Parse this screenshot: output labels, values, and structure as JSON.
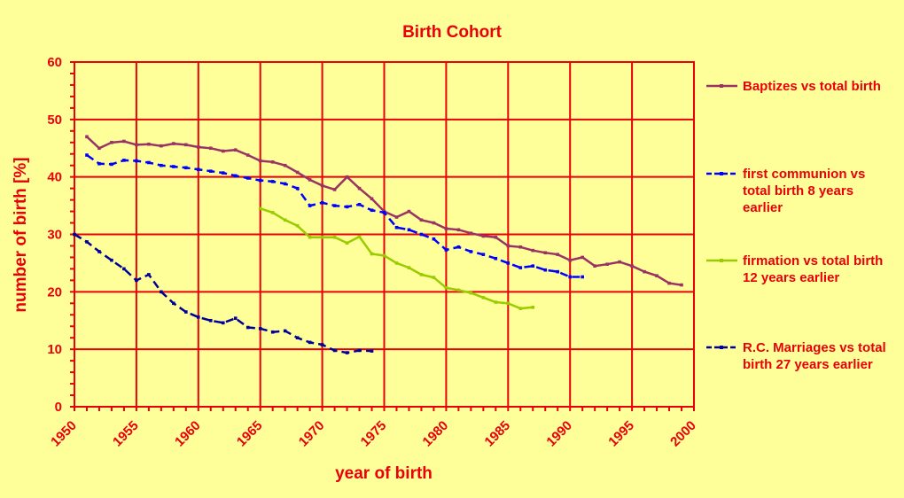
{
  "chart_data": {
    "type": "line",
    "title": "Birth Cohort",
    "xlabel": "year of birth",
    "ylabel": "number of birth [%]",
    "xlim": [
      1950,
      2000
    ],
    "ylim": [
      0,
      60
    ],
    "x_ticks": [
      "1950",
      "1955",
      "1960",
      "1965",
      "1970",
      "1975",
      "1980",
      "1985",
      "1990",
      "1995",
      "2000"
    ],
    "y_ticks": [
      "0",
      "10",
      "20",
      "30",
      "40",
      "50",
      "60"
    ],
    "grid": true,
    "legend_position": "right",
    "colors": {
      "background": "#ffff99",
      "grid": "#e8000b",
      "text": "#e8000b"
    },
    "series": [
      {
        "name": "Baptizes vs total birth",
        "legend_lines": [
          "Baptizes vs total birth"
        ],
        "color": "#993366",
        "dash": "none",
        "x": [
          1951,
          1952,
          1953,
          1954,
          1955,
          1956,
          1957,
          1958,
          1959,
          1960,
          1961,
          1962,
          1963,
          1964,
          1965,
          1966,
          1967,
          1968,
          1969,
          1970,
          1971,
          1972,
          1973,
          1974,
          1975,
          1976,
          1977,
          1978,
          1979,
          1980,
          1981,
          1982,
          1983,
          1984,
          1985,
          1986,
          1987,
          1988,
          1989,
          1990,
          1991,
          1992,
          1993,
          1994,
          1995,
          1996,
          1997,
          1998,
          1999
        ],
        "y": [
          47.0,
          45.0,
          46.0,
          46.2,
          45.6,
          45.7,
          45.4,
          45.8,
          45.6,
          45.2,
          45.0,
          44.5,
          44.7,
          43.8,
          42.8,
          42.6,
          42.0,
          40.8,
          39.5,
          38.5,
          37.8,
          40.0,
          38.0,
          36.2,
          34.0,
          33.0,
          34.0,
          32.5,
          32.0,
          31.0,
          30.8,
          30.2,
          29.7,
          29.5,
          28.0,
          27.8,
          27.2,
          26.8,
          26.5,
          25.5,
          26.0,
          24.5,
          24.8,
          25.2,
          24.5,
          23.5,
          22.8,
          21.5,
          21.2
        ]
      },
      {
        "name": "first communion vs total birth 8 years earlier",
        "legend_lines": [
          "first communion vs",
          "total birth 8 years",
          "earlier"
        ],
        "color": "#0000ff",
        "dash": "9 5",
        "x": [
          1951,
          1952,
          1953,
          1954,
          1955,
          1956,
          1957,
          1958,
          1959,
          1960,
          1961,
          1962,
          1963,
          1964,
          1965,
          1966,
          1967,
          1968,
          1969,
          1970,
          1971,
          1972,
          1973,
          1974,
          1975,
          1976,
          1977,
          1978,
          1979,
          1980,
          1981,
          1982,
          1983,
          1984,
          1985,
          1986,
          1987,
          1988,
          1989,
          1990,
          1991
        ],
        "y": [
          43.8,
          42.3,
          42.2,
          42.9,
          42.8,
          42.5,
          42.0,
          41.8,
          41.6,
          41.3,
          41.0,
          40.7,
          40.2,
          39.8,
          39.4,
          39.2,
          38.8,
          38.0,
          35.0,
          35.5,
          35.0,
          34.8,
          35.2,
          34.2,
          33.8,
          31.2,
          30.8,
          30.0,
          29.2,
          27.3,
          27.8,
          27.0,
          26.5,
          25.8,
          25.0,
          24.2,
          24.5,
          23.8,
          23.5,
          22.6,
          22.6
        ]
      },
      {
        "name": "firmation vs total birth 12 years earlier",
        "legend_lines": [
          "firmation vs total birth",
          "12 years earlier"
        ],
        "color": "#99cc00",
        "dash": "none",
        "x": [
          1965,
          1966,
          1967,
          1968,
          1969,
          1970,
          1971,
          1972,
          1973,
          1974,
          1975,
          1976,
          1977,
          1978,
          1979,
          1980,
          1981,
          1982,
          1983,
          1984,
          1985,
          1986,
          1987
        ],
        "y": [
          34.5,
          33.8,
          32.5,
          31.5,
          29.5,
          29.5,
          29.5,
          28.5,
          29.6,
          26.6,
          26.3,
          25.0,
          24.2,
          23.0,
          22.5,
          20.7,
          20.3,
          19.8,
          19.0,
          18.2,
          18.0,
          17.1,
          17.3
        ]
      },
      {
        "name": "R.C. Marriages vs total birth 27 years earlier",
        "legend_lines": [
          "R.C. Marriages vs total",
          "birth 27 years earlier"
        ],
        "color": "#000099",
        "dash": "9 5",
        "x": [
          1950,
          1951,
          1952,
          1953,
          1954,
          1955,
          1956,
          1957,
          1958,
          1959,
          1960,
          1961,
          1962,
          1963,
          1964,
          1965,
          1966,
          1967,
          1968,
          1969,
          1970,
          1971,
          1972,
          1973,
          1974
        ],
        "y": [
          30.0,
          28.7,
          27.0,
          25.5,
          24.0,
          22.0,
          23.0,
          20.0,
          18.0,
          16.5,
          15.6,
          15.0,
          14.6,
          15.4,
          13.8,
          13.6,
          13.0,
          13.2,
          12.0,
          11.2,
          10.8,
          9.8,
          9.4,
          9.8,
          9.7
        ]
      }
    ]
  }
}
